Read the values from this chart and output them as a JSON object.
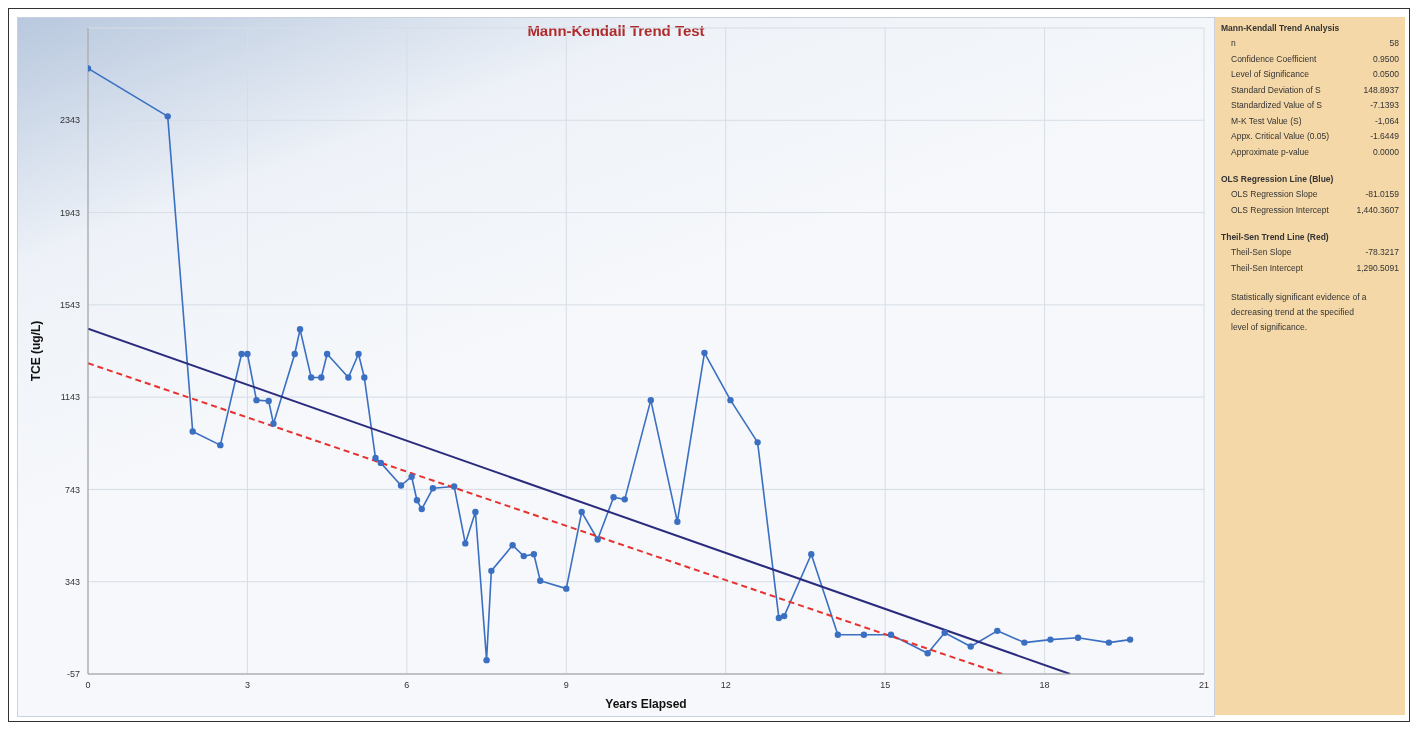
{
  "chart_data": {
    "type": "line",
    "title": "Mann-Kendall Trend Test",
    "xlabel": "Years Elapsed",
    "ylabel": "TCE (ug/L)",
    "xlim": [
      0,
      21
    ],
    "xticks": [
      0,
      3,
      6,
      9,
      12,
      15,
      18,
      21
    ],
    "ylim": [
      -57,
      2743
    ],
    "yticks": [
      -57,
      343,
      743,
      1143,
      1543,
      1943,
      2343
    ],
    "grid": true,
    "marker": "circle",
    "series": [
      {
        "color": "#3b6fc2",
        "x": [
          0,
          1.5,
          1.97,
          2.49,
          2.89,
          3.0,
          3.17,
          3.4,
          3.49,
          3.89,
          3.99,
          4.2,
          4.39,
          4.5,
          4.9,
          5.09,
          5.2,
          5.41,
          5.51,
          5.89,
          6.09,
          6.19,
          6.28,
          6.49,
          6.89,
          7.1,
          7.29,
          7.5,
          7.59,
          7.99,
          8.2,
          8.39,
          8.51,
          9.0,
          9.29,
          9.59,
          9.89,
          10.1,
          10.59,
          11.09,
          11.6,
          12.09,
          12.6,
          13.0,
          13.1,
          13.61,
          14.11,
          14.6,
          15.11,
          15.8,
          16.12,
          16.61,
          17.11,
          17.62,
          18.11,
          18.63,
          19.21,
          19.61
        ],
        "values": [
          2568,
          2360,
          994,
          935,
          1330,
          1330,
          1130,
          1126,
          1028,
          1330,
          1437,
          1228,
          1228,
          1330,
          1228,
          1330,
          1228,
          879,
          858,
          760,
          798,
          696,
          658,
          748,
          756,
          509,
          645,
          3,
          390,
          501,
          454,
          462,
          347,
          313,
          645,
          526,
          709,
          700,
          1130,
          603,
          1335,
          1130,
          947,
          186,
          194,
          462,
          113,
          113,
          113,
          33,
          122,
          62,
          130,
          79,
          92,
          100,
          79,
          92
        ]
      },
      {
        "color": "#2b2b7e",
        "marker": "none",
        "line_style": "solid",
        "x": [
          0,
          18.48
        ],
        "values": [
          1440,
          -57
        ]
      },
      {
        "color": "#e8302c",
        "marker": "none",
        "line_style": "dashed",
        "x": [
          0,
          17.2
        ],
        "values": [
          1290,
          -57
        ]
      }
    ],
    "annotations": [
      "Mann-Kendall Trend Analysis",
      "n",
      "58",
      "Confidence Coefficient",
      "0.9500",
      "Level of Significance",
      "0.0500",
      "Standard Deviation of S",
      "148.8937",
      "Standardized Value of S",
      "-7.1393",
      "M-K Test Value (S)",
      "-1,064",
      "Appx. Critical Value (0.05)",
      "-1.6449",
      "Approximate p-value",
      "0.0000",
      "OLS Regression Line (Blue)",
      "OLS Regression Slope",
      "-81.0159",
      "OLS Regression Intercept",
      "1,440.3607",
      "Theil-Sen Trend Line (Red)",
      "Theil-Sen Slope",
      "-78.3217",
      "Theil-Sen Intercept",
      "1,290.5091",
      "Statistically significant evidence of a decreasing trend at the specified level of significance."
    ]
  }
}
